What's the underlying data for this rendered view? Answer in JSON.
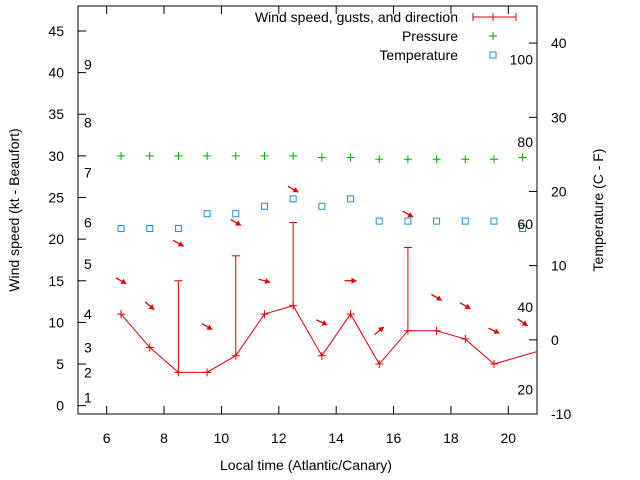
{
  "chart_data": {
    "type": "line",
    "xlabel": "Local time (Atlantic/Canary)",
    "ylabel": "Wind speed (kt - Beaufort)",
    "y2label": "Temperature (C - F)",
    "xlim": [
      5,
      21
    ],
    "ylim": [
      -1,
      48
    ],
    "y2lim": [
      -10,
      45
    ],
    "x_ticks": [
      6,
      8,
      10,
      12,
      14,
      16,
      18,
      20
    ],
    "y_ticks": [
      0,
      5,
      10,
      15,
      20,
      25,
      30,
      35,
      40,
      45
    ],
    "y2_ticks": [
      -10,
      0,
      10,
      20,
      30,
      40
    ],
    "beaufort_labels": [
      {
        "label": "1",
        "at": 1
      },
      {
        "label": "2",
        "at": 4
      },
      {
        "label": "3",
        "at": 7
      },
      {
        "label": "4",
        "at": 11
      },
      {
        "label": "5",
        "at": 17
      },
      {
        "label": "6",
        "at": 22
      },
      {
        "label": "7",
        "at": 28
      },
      {
        "label": "8",
        "at": 34
      },
      {
        "label": "9",
        "at": 41
      }
    ],
    "fahrenheit_labels": [
      {
        "label": "20",
        "at_c": -6.7
      },
      {
        "label": "40",
        "at_c": 4.4
      },
      {
        "label": "60",
        "at_c": 15.6
      },
      {
        "label": "80",
        "at_c": 26.7
      },
      {
        "label": "100",
        "at_c": 37.8
      }
    ],
    "legend": [
      {
        "name": "Wind speed, gusts, and direction",
        "color": "#dd0000",
        "marker": "line-plus"
      },
      {
        "name": "Pressure",
        "color": "#00aa00",
        "marker": "plus"
      },
      {
        "name": "Temperature",
        "color": "#1e8fd6",
        "marker": "square"
      }
    ],
    "wind": {
      "x": [
        6.5,
        7.5,
        8.5,
        9.5,
        10.5,
        11.5,
        12.5,
        13.5,
        14.5,
        15.5,
        16.5,
        17.5,
        18.5,
        19.5,
        20.5,
        21
      ],
      "speed": [
        11,
        7,
        4,
        4,
        6,
        11,
        12,
        6,
        11,
        5,
        9,
        9,
        8,
        5,
        6,
        6.5
      ],
      "gusts": [
        {
          "x": 8.5,
          "value": 15
        },
        {
          "x": 10.5,
          "value": 18
        },
        {
          "x": 12.5,
          "value": 22
        },
        {
          "x": 16.5,
          "value": 19
        }
      ]
    },
    "wind_direction": [
      {
        "x": 6.5,
        "y": 15,
        "angle": 30
      },
      {
        "x": 7.5,
        "y": 12,
        "angle": 40
      },
      {
        "x": 8.5,
        "y": 19.5,
        "angle": 30
      },
      {
        "x": 9.5,
        "y": 9.5,
        "angle": 30
      },
      {
        "x": 10.5,
        "y": 22,
        "angle": 30
      },
      {
        "x": 11.5,
        "y": 15,
        "angle": 15
      },
      {
        "x": 12.5,
        "y": 26,
        "angle": 30
      },
      {
        "x": 13.5,
        "y": 10,
        "angle": 25
      },
      {
        "x": 14.5,
        "y": 15,
        "angle": 0
      },
      {
        "x": 15.5,
        "y": 9,
        "angle": -40
      },
      {
        "x": 16.5,
        "y": 23,
        "angle": 30
      },
      {
        "x": 17.5,
        "y": 13,
        "angle": 30
      },
      {
        "x": 18.5,
        "y": 12,
        "angle": 30
      },
      {
        "x": 19.5,
        "y": 9,
        "angle": 25
      },
      {
        "x": 20.5,
        "y": 10,
        "angle": 35
      }
    ],
    "pressure": {
      "x": [
        6.5,
        7.5,
        8.5,
        9.5,
        10.5,
        11.5,
        12.5,
        13.5,
        14.5,
        15.5,
        16.5,
        17.5,
        18.5,
        19.5,
        20.5
      ],
      "y": [
        30,
        30,
        30,
        30,
        30,
        30,
        30,
        29.8,
        29.8,
        29.6,
        29.6,
        29.6,
        29.6,
        29.6,
        29.8
      ]
    },
    "temperature": {
      "x": [
        6.5,
        7.5,
        8.5,
        9.5,
        10.5,
        11.5,
        12.5,
        13.5,
        14.5,
        15.5,
        16.5,
        17.5,
        18.5,
        19.5,
        20.5
      ],
      "y": [
        15,
        15,
        15,
        17,
        17,
        18,
        19,
        18,
        19,
        16,
        16,
        16,
        16,
        16,
        15
      ]
    }
  }
}
